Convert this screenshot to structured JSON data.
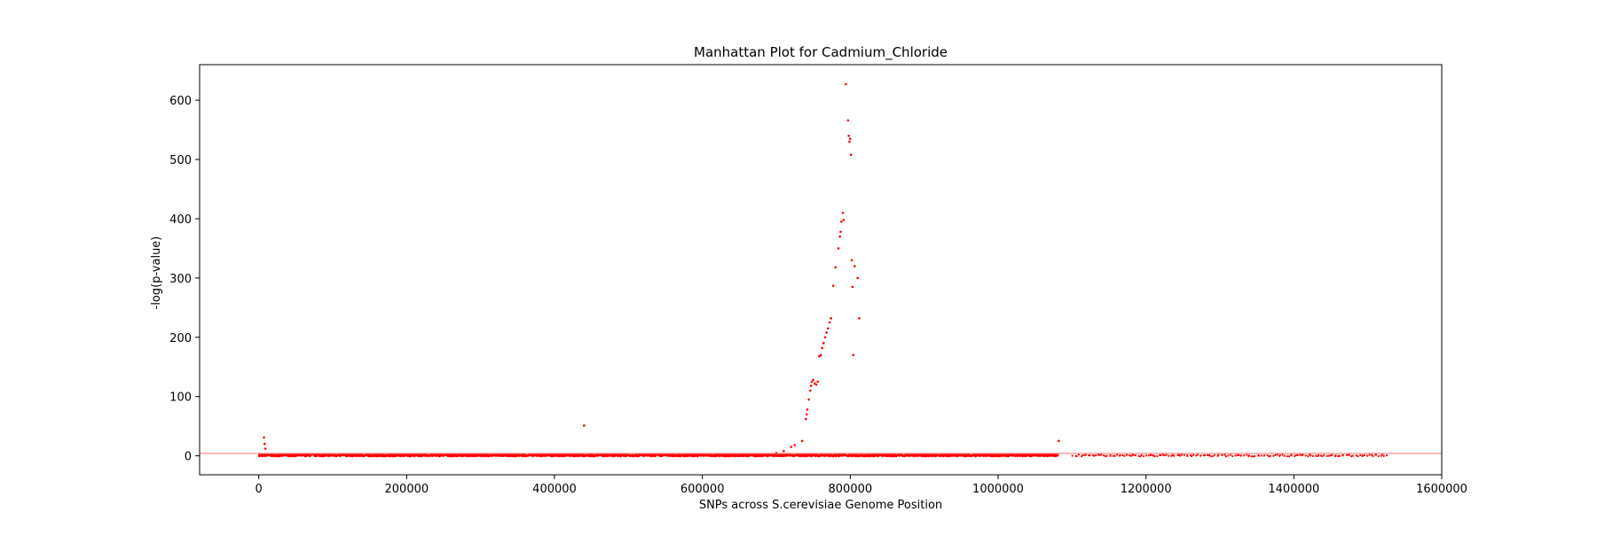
{
  "chart_data": {
    "type": "scatter",
    "title": "Manhattan Plot for Cadmium_Chloride",
    "xlabel": "SNPs across S.cerevisiae Genome Position",
    "ylabel": "-log(p-value)",
    "xlim": [
      -80000,
      1600000
    ],
    "ylim": [
      -32,
      660
    ],
    "xticks": [
      0,
      200000,
      400000,
      600000,
      800000,
      1000000,
      1200000,
      1400000,
      1600000
    ],
    "yticks": [
      0,
      100,
      200,
      300,
      400,
      500,
      600
    ],
    "grid": false,
    "threshold_line": 4,
    "colors": {
      "points": "#ff0000",
      "threshold": "#ff8080",
      "axes": "#000000"
    },
    "series": [
      {
        "baseline": {
          "segments": [
            {
              "x_start": 0,
              "x_end": 1080000,
              "y_min": -1,
              "y_max": 3
            },
            {
              "x_start": 1100000,
              "x_end": 1525000,
              "y_min": -1,
              "y_max": 2
            }
          ]
        },
        "points": [
          {
            "x": 7000,
            "y": 31
          },
          {
            "x": 8000,
            "y": 20
          },
          {
            "x": 9000,
            "y": 12
          },
          {
            "x": 440000,
            "y": 51
          },
          {
            "x": 700000,
            "y": 5
          },
          {
            "x": 710000,
            "y": 8
          },
          {
            "x": 720000,
            "y": 15
          },
          {
            "x": 725000,
            "y": 18
          },
          {
            "x": 735000,
            "y": 25
          },
          {
            "x": 740000,
            "y": 62
          },
          {
            "x": 741000,
            "y": 70
          },
          {
            "x": 742000,
            "y": 78
          },
          {
            "x": 744000,
            "y": 95
          },
          {
            "x": 746000,
            "y": 110
          },
          {
            "x": 747000,
            "y": 118
          },
          {
            "x": 748000,
            "y": 125
          },
          {
            "x": 750000,
            "y": 128
          },
          {
            "x": 752000,
            "y": 122
          },
          {
            "x": 754000,
            "y": 120
          },
          {
            "x": 756000,
            "y": 125
          },
          {
            "x": 758000,
            "y": 168
          },
          {
            "x": 760000,
            "y": 170
          },
          {
            "x": 762000,
            "y": 182
          },
          {
            "x": 764000,
            "y": 190
          },
          {
            "x": 766000,
            "y": 200
          },
          {
            "x": 768000,
            "y": 208
          },
          {
            "x": 770000,
            "y": 215
          },
          {
            "x": 772000,
            "y": 225
          },
          {
            "x": 774000,
            "y": 232
          },
          {
            "x": 777000,
            "y": 287
          },
          {
            "x": 780000,
            "y": 318
          },
          {
            "x": 784000,
            "y": 350
          },
          {
            "x": 786000,
            "y": 370
          },
          {
            "x": 787000,
            "y": 378
          },
          {
            "x": 788000,
            "y": 395
          },
          {
            "x": 790000,
            "y": 410
          },
          {
            "x": 791000,
            "y": 398
          },
          {
            "x": 794000,
            "y": 627
          },
          {
            "x": 797000,
            "y": 566
          },
          {
            "x": 798000,
            "y": 540
          },
          {
            "x": 799000,
            "y": 530
          },
          {
            "x": 800000,
            "y": 535
          },
          {
            "x": 801000,
            "y": 508
          },
          {
            "x": 802000,
            "y": 330
          },
          {
            "x": 803000,
            "y": 285
          },
          {
            "x": 804000,
            "y": 170
          },
          {
            "x": 806000,
            "y": 320
          },
          {
            "x": 810000,
            "y": 300
          },
          {
            "x": 812000,
            "y": 232
          },
          {
            "x": 1082000,
            "y": 25
          }
        ]
      }
    ]
  }
}
